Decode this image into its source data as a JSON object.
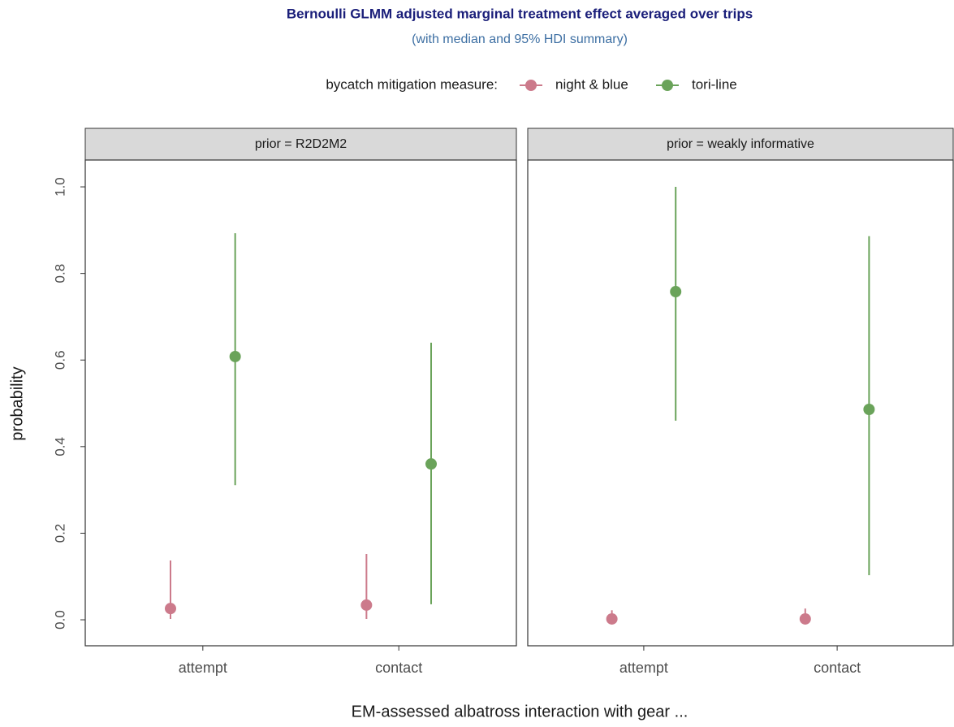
{
  "chart_data": {
    "type": "pointrange",
    "title": "Bernoulli GLMM adjusted marginal treatment effect averaged over trips",
    "subtitle": "(with median and 95% HDI summary)",
    "legend_title": "bycatch mitigation measure:",
    "legend_position": "top",
    "x_label": "EM-assessed albatross interaction with gear ...",
    "y_label": "probability",
    "categories": [
      "attempt",
      "contact"
    ],
    "ylim": [
      -0.06,
      1.062
    ],
    "yticks": [
      {
        "value": 0,
        "label": "0.0"
      },
      0.2,
      0.4,
      0.6,
      0.8,
      {
        "value": 1,
        "label": "1.0"
      }
    ],
    "series": [
      {
        "name": "night & blue",
        "color": "#cc7a8b"
      },
      {
        "name": "tori-line",
        "color": "#6aa35a"
      }
    ],
    "facets": [
      {
        "title": "prior = R2D2M2",
        "series": [
          {
            "values": [
              0.026,
              0.034
            ],
            "lower": [
              0.002,
              0.002
            ],
            "upper": [
              0.137,
              0.152
            ]
          },
          {
            "values": [
              0.608,
              0.36
            ],
            "lower": [
              0.311,
              0.036
            ],
            "upper": [
              0.893,
              0.64
            ]
          }
        ]
      },
      {
        "title": "prior = weakly informative",
        "series": [
          {
            "values": [
              0.002,
              0.002
            ],
            "lower": [
              0,
              0
            ],
            "upper": [
              0.022,
              0.026
            ]
          },
          {
            "values": [
              0.758,
              0.486
            ],
            "lower": [
              0.46,
              0.103
            ],
            "upper": [
              1,
              0.886
            ]
          }
        ]
      }
    ]
  }
}
